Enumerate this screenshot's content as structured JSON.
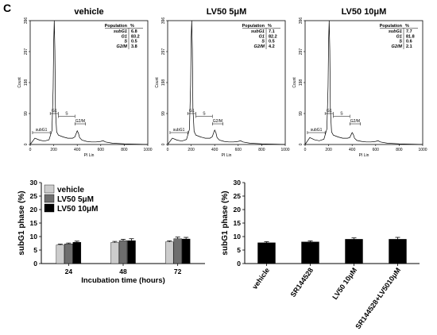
{
  "panel_label": "C",
  "chart_data": [
    {
      "type": "line",
      "title": "vehicle",
      "xlabel": "PI Lin",
      "ylabel": "Count",
      "xlim": [
        0,
        1000
      ],
      "ylim": [
        0,
        396
      ],
      "x_ticks": [
        "0",
        "200",
        "400",
        "600",
        "800",
        "1000"
      ],
      "y_ticks": [
        "0",
        "99",
        "198",
        "297",
        "396"
      ],
      "series": [
        {
          "x": [
            0,
            40,
            80,
            120,
            160,
            185,
            195,
            200,
            205,
            210,
            215,
            225,
            240,
            280,
            320,
            360,
            380,
            390,
            400,
            410,
            420,
            440,
            480,
            520,
            560,
            600,
            620,
            640,
            700,
            800,
            900,
            1000
          ],
          "y": [
            0,
            20,
            14,
            11,
            15,
            45,
            180,
            330,
            396,
            300,
            110,
            40,
            30,
            24,
            20,
            20,
            24,
            34,
            44,
            36,
            22,
            14,
            10,
            8,
            8,
            10,
            12,
            8,
            4,
            2,
            1,
            0
          ]
        }
      ],
      "gates": [
        "subG1",
        "G1",
        "S",
        "G2/M"
      ],
      "table": {
        "header": [
          "Population",
          "%"
        ],
        "rows": [
          [
            "subG1",
            "6.8"
          ],
          [
            "G1",
            "83.2"
          ],
          [
            "S",
            "0.5"
          ],
          [
            "G2/M",
            "3.8"
          ]
        ]
      }
    },
    {
      "type": "line",
      "title": "LV50 5μM",
      "xlabel": "PI Lin",
      "ylabel": "Count",
      "xlim": [
        0,
        1000
      ],
      "ylim": [
        0,
        396
      ],
      "x_ticks": [
        "0",
        "200",
        "400",
        "600",
        "800",
        "1000"
      ],
      "y_ticks": [
        "0",
        "99",
        "198",
        "297",
        "396"
      ],
      "series": [
        {
          "x": [
            0,
            40,
            80,
            120,
            160,
            185,
            195,
            200,
            205,
            210,
            215,
            225,
            240,
            280,
            320,
            360,
            380,
            390,
            400,
            410,
            420,
            440,
            480,
            520,
            560,
            600,
            620,
            640,
            700,
            800,
            900,
            1000
          ],
          "y": [
            0,
            20,
            14,
            11,
            16,
            48,
            190,
            340,
            396,
            305,
            115,
            42,
            30,
            24,
            20,
            20,
            25,
            36,
            46,
            38,
            22,
            14,
            10,
            8,
            8,
            10,
            12,
            8,
            4,
            2,
            1,
            0
          ]
        }
      ],
      "gates": [
        "subG1",
        "G1",
        "S",
        "G2/M"
      ],
      "table": {
        "header": [
          "Population",
          "%"
        ],
        "rows": [
          [
            "subG1",
            "7.1"
          ],
          [
            "G1",
            "82.2"
          ],
          [
            "S",
            "0.5"
          ],
          [
            "G2/M",
            "4.2"
          ]
        ]
      }
    },
    {
      "type": "line",
      "title": "LV50 10μM",
      "xlabel": "PI Lin",
      "ylabel": "Count",
      "xlim": [
        0,
        1000
      ],
      "ylim": [
        0,
        396
      ],
      "x_ticks": [
        "0",
        "200",
        "400",
        "600",
        "800",
        "1000"
      ],
      "y_ticks": [
        "0",
        "99",
        "198",
        "297",
        "396"
      ],
      "series": [
        {
          "x": [
            0,
            40,
            80,
            120,
            160,
            185,
            195,
            200,
            205,
            210,
            215,
            225,
            240,
            280,
            320,
            360,
            380,
            390,
            400,
            410,
            420,
            440,
            480,
            520,
            560,
            600,
            620,
            640,
            700,
            800,
            900,
            1000
          ],
          "y": [
            0,
            22,
            15,
            12,
            17,
            50,
            185,
            335,
            396,
            300,
            112,
            40,
            30,
            24,
            20,
            20,
            22,
            30,
            38,
            32,
            20,
            13,
            10,
            8,
            8,
            10,
            12,
            8,
            4,
            2,
            1,
            0
          ]
        }
      ],
      "gates": [
        "subG1",
        "G1",
        "S",
        "G2/M"
      ],
      "table": {
        "header": [
          "Population",
          "%"
        ],
        "rows": [
          [
            "subG1",
            "7.7"
          ],
          [
            "G1",
            "81.8"
          ],
          [
            "S",
            "0.6"
          ],
          [
            "G2/M",
            "2.1"
          ]
        ]
      }
    },
    {
      "type": "bar",
      "title": "",
      "xlabel": "Incubation time (hours)",
      "ylabel": "subG1 phase (%)",
      "ylim": [
        0,
        30
      ],
      "y_ticks": [
        "0",
        "5",
        "10",
        "15",
        "20",
        "25",
        "30"
      ],
      "categories": [
        "24",
        "48",
        "72"
      ],
      "legend_position": "top-left",
      "series": [
        {
          "name": "vehicle",
          "color": "#cccccc",
          "values": [
            6.9,
            7.8,
            8.0
          ],
          "errors": [
            0.3,
            0.4,
            0.4
          ]
        },
        {
          "name": "LV50 5μM",
          "color": "#6e6e6e",
          "values": [
            7.3,
            8.5,
            9.2
          ],
          "errors": [
            0.3,
            0.5,
            0.6
          ]
        },
        {
          "name": "LV50 10μM",
          "color": "#000000",
          "values": [
            7.9,
            8.5,
            9.1
          ],
          "errors": [
            0.4,
            0.7,
            0.6
          ]
        }
      ]
    },
    {
      "type": "bar",
      "title": "",
      "xlabel": "",
      "ylabel": "subG1 phase (%)",
      "ylim": [
        0,
        30
      ],
      "y_ticks": [
        "0",
        "5",
        "10",
        "15",
        "20",
        "25",
        "30"
      ],
      "categories": [
        "vehicle",
        "SR144528",
        "LV50 10μM",
        "SR144528+LV5010μM"
      ],
      "series": [
        {
          "color": "#000000",
          "values": [
            7.7,
            8.0,
            9.0,
            9.0
          ],
          "errors": [
            0.4,
            0.4,
            0.5,
            0.7
          ]
        }
      ]
    }
  ]
}
